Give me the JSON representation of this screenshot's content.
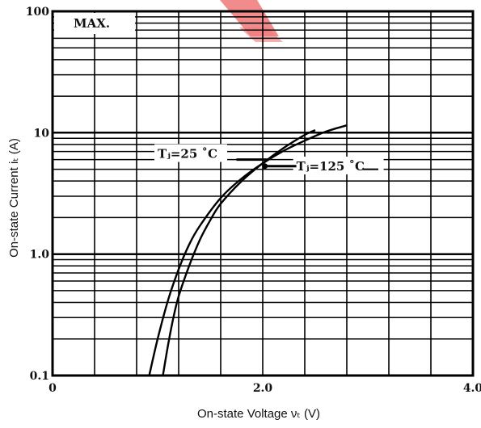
{
  "chart_data": {
    "type": "line",
    "title": "",
    "badge": "MAX.",
    "xlabel": "On-state Voltage νₜ (V)",
    "ylabel": "On-state Current iₜ (A)",
    "xlim": [
      0,
      4.0
    ],
    "ylim": [
      0.1,
      100
    ],
    "y_scale": "log",
    "grid": true,
    "x_ticks": [
      {
        "value": 0,
        "label": "0"
      },
      {
        "value": 2.0,
        "label": "2.0"
      },
      {
        "value": 4.0,
        "label": "4.0"
      }
    ],
    "y_ticks": [
      {
        "value": 0.1,
        "label": "0.1"
      },
      {
        "value": 1.0,
        "label": "1.0"
      },
      {
        "value": 10,
        "label": "10"
      },
      {
        "value": 100,
        "label": "100"
      }
    ],
    "series": [
      {
        "name": "Tj=25 °C",
        "label_text": "Tⱼ=25 ˚C",
        "color": "#000000",
        "x": [
          1.05,
          1.1,
          1.15,
          1.2,
          1.3,
          1.4,
          1.5,
          1.6,
          1.8,
          2.0,
          2.2,
          2.4,
          2.5
        ],
        "y": [
          0.1,
          0.18,
          0.3,
          0.45,
          0.8,
          1.3,
          1.9,
          2.6,
          4.0,
          5.6,
          7.5,
          9.6,
          10.5
        ]
      },
      {
        "name": "Tj=125 °C",
        "label_text": "Tⱼ=125 ˚C",
        "color": "#000000",
        "x": [
          0.92,
          1.0,
          1.1,
          1.2,
          1.3,
          1.4,
          1.6,
          1.8,
          2.0,
          2.2,
          2.4,
          2.6,
          2.8
        ],
        "y": [
          0.1,
          0.2,
          0.42,
          0.75,
          1.2,
          1.7,
          2.9,
          4.2,
          5.6,
          7.1,
          8.6,
          10.2,
          11.5
        ]
      }
    ]
  }
}
